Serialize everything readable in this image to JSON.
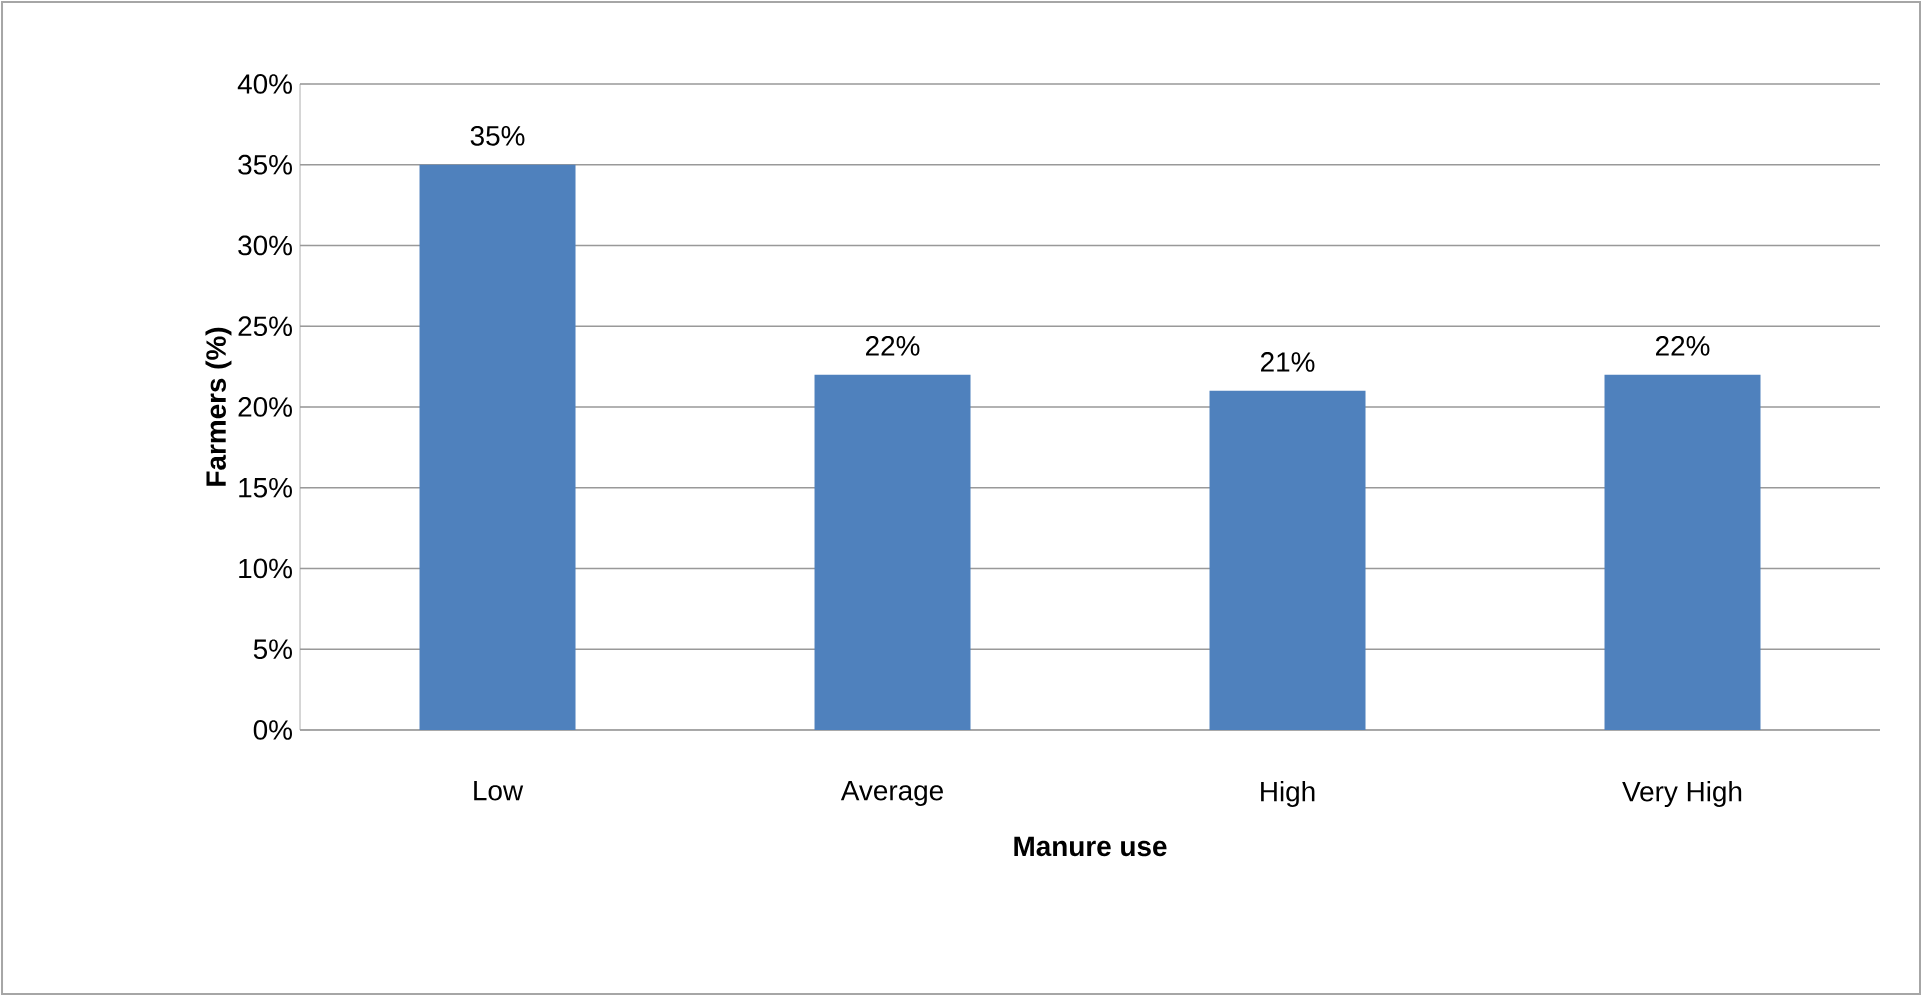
{
  "chart_data": {
    "type": "bar",
    "xlabel": "Manure use",
    "ylabel": "Farmers (%)",
    "categories": [
      "Low",
      "Average",
      "High",
      "Very High"
    ],
    "values": [
      35,
      22,
      21,
      22
    ],
    "value_labels": [
      "35%",
      "22%",
      "21%",
      "22%"
    ],
    "color": "#4f81bd",
    "ylim": [
      0,
      40
    ],
    "yticks": [
      {
        "value": 0,
        "label": "0%"
      },
      {
        "value": 5,
        "label": "5%"
      },
      {
        "value": 10,
        "label": "10%"
      },
      {
        "value": 15,
        "label": "15%"
      },
      {
        "value": 20,
        "label": "20%"
      },
      {
        "value": 25,
        "label": "25%"
      },
      {
        "value": 30,
        "label": "30%"
      },
      {
        "value": 35,
        "label": "35%"
      },
      {
        "value": 40,
        "label": "40%"
      }
    ],
    "grid": "y"
  }
}
